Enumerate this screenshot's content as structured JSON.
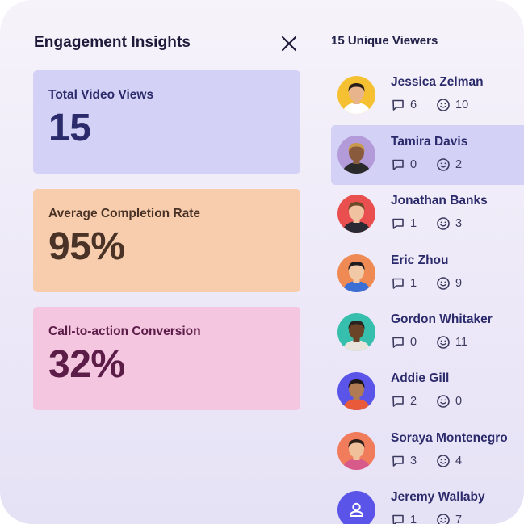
{
  "panel": {
    "title": "Engagement Insights",
    "close_icon": "close-icon"
  },
  "stats": [
    {
      "label": "Total Video Views",
      "value": "15",
      "bg": "#d3d1f5",
      "label_color": "#2b2a6b",
      "value_color": "#2b2a6b"
    },
    {
      "label": "Average Completion Rate",
      "value": "95%",
      "bg": "#f7cdad",
      "label_color": "#4a3326",
      "value_color": "#4a3326"
    },
    {
      "label": "Call-to-action Conversion",
      "value": "32%",
      "bg": "#f4c6e0",
      "label_color": "#5c1c48",
      "value_color": "#5c1c48"
    }
  ],
  "viewers": {
    "title": "15 Unique Viewers",
    "comment_icon": "comment-icon",
    "reaction_icon": "smiley-icon",
    "list": [
      {
        "name": "Jessica Zelman",
        "comments": "6",
        "reactions": "10",
        "avatar_bg": "#f5c133",
        "selected": false
      },
      {
        "name": "Tamira Davis",
        "comments": "0",
        "reactions": "2",
        "avatar_bg": "#b39ad8",
        "selected": true
      },
      {
        "name": "Jonathan Banks",
        "comments": "1",
        "reactions": "3",
        "avatar_bg": "#ea4f4f",
        "selected": false
      },
      {
        "name": "Eric Zhou",
        "comments": "1",
        "reactions": "9",
        "avatar_bg": "#f08a55",
        "selected": false
      },
      {
        "name": "Gordon Whitaker",
        "comments": "0",
        "reactions": "11",
        "avatar_bg": "#37bfae",
        "selected": false
      },
      {
        "name": "Addie Gill",
        "comments": "2",
        "reactions": "0",
        "avatar_bg": "#5a54e8",
        "selected": false
      },
      {
        "name": "Soraya Montenegro",
        "comments": "3",
        "reactions": "4",
        "avatar_bg": "#f07c5c",
        "selected": false
      },
      {
        "name": "Jeremy Wallaby",
        "comments": "1",
        "reactions": "7",
        "avatar_bg": "#5a54e8",
        "selected": false,
        "placeholder": true
      }
    ]
  }
}
